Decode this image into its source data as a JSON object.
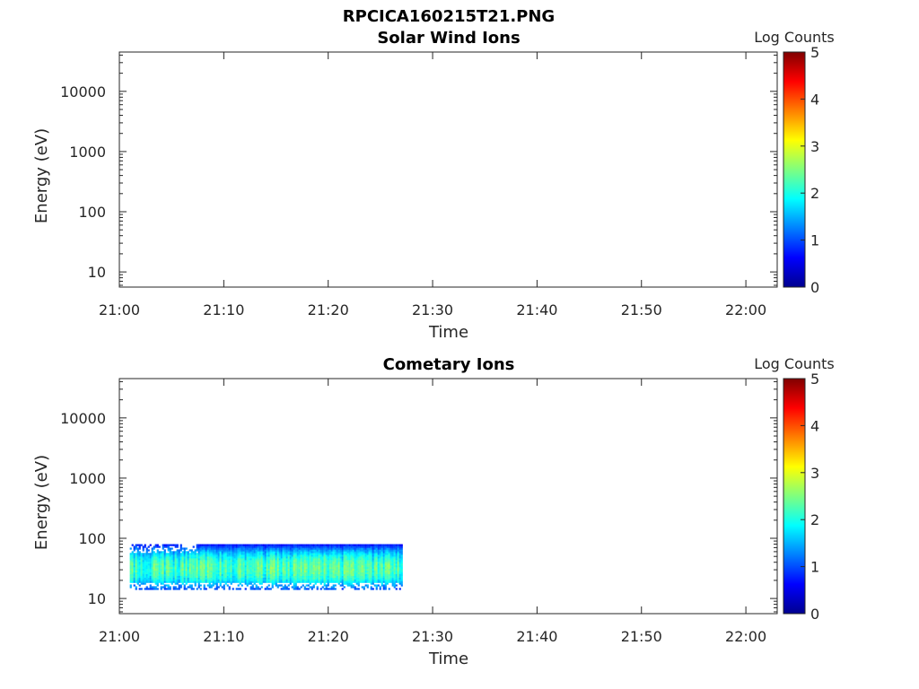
{
  "figure_title": "RPCICA160215T21.PNG",
  "chart_data": [
    {
      "type": "heatmap",
      "title": "Solar Wind Ions",
      "xlabel": "Time",
      "ylabel": "Energy (eV)",
      "xticks": [
        "21:00",
        "21:10",
        "21:20",
        "21:30",
        "21:40",
        "21:50",
        "22:00"
      ],
      "xlim": [
        "21:00",
        "22:03"
      ],
      "yscale": "log",
      "yticks": [
        "10",
        "100",
        "1000",
        "10000"
      ],
      "ylim": [
        5.6,
        45000
      ],
      "colorbar": {
        "label": "Log Counts",
        "range": [
          0,
          5
        ],
        "ticks": [
          "0",
          "1",
          "2",
          "3",
          "4",
          "5"
        ],
        "colormap": "jet"
      },
      "data": []
    },
    {
      "type": "heatmap",
      "title": "Cometary Ions",
      "xlabel": "Time",
      "ylabel": "Energy (eV)",
      "xticks": [
        "21:00",
        "21:10",
        "21:20",
        "21:30",
        "21:40",
        "21:50",
        "22:00"
      ],
      "xlim": [
        "21:00",
        "22:03"
      ],
      "yscale": "log",
      "yticks": [
        "10",
        "100",
        "1000",
        "10000"
      ],
      "ylim": [
        5.6,
        45000
      ],
      "colorbar": {
        "label": "Log Counts",
        "range": [
          0,
          5
        ],
        "ticks": [
          "0",
          "1",
          "2",
          "3",
          "4",
          "5"
        ],
        "colormap": "jet"
      },
      "data": [
        {
          "time_range": [
            "21:01",
            "21:27"
          ],
          "energy_range_eV": [
            14,
            80
          ],
          "log_counts_range": [
            0.5,
            2.2
          ],
          "peak_energy_eV": 32
        }
      ]
    }
  ]
}
